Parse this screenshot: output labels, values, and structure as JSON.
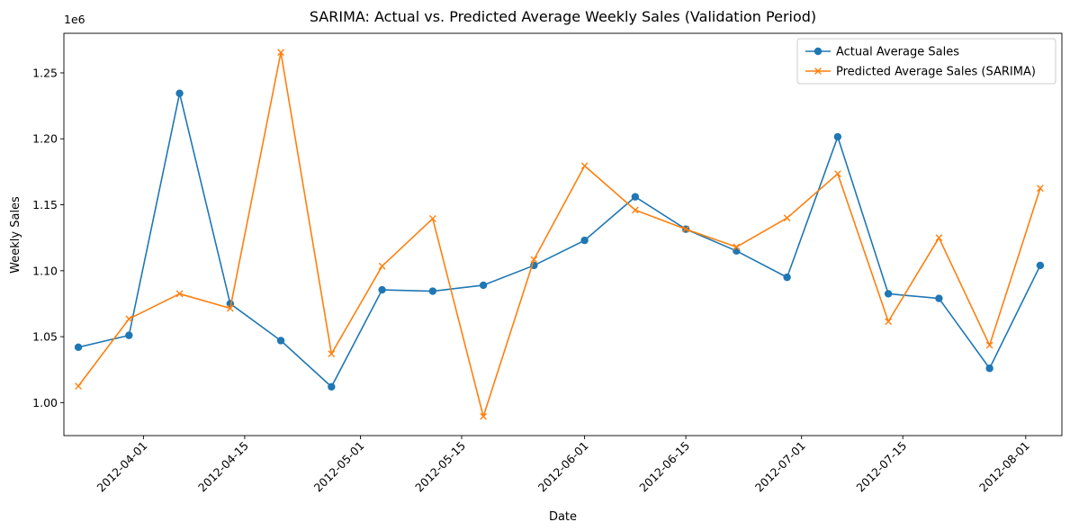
{
  "chart_data": {
    "type": "line",
    "title": "SARIMA: Actual vs. Predicted Average Weekly Sales (Validation Period)",
    "xlabel": "Date",
    "ylabel": "Weekly Sales",
    "y_offset_label": "1e6",
    "y_multiplier": 1000000,
    "ylim": [
      975000,
      1280000
    ],
    "xlim": [
      "2012-03-21",
      "2012-08-06"
    ],
    "x_tick_labels": [
      "2012-04-01",
      "2012-04-15",
      "2012-05-01",
      "2012-05-15",
      "2012-06-01",
      "2012-06-15",
      "2012-07-01",
      "2012-07-15",
      "2012-08-01"
    ],
    "y_tick_labels": [
      "1.00",
      "1.05",
      "1.10",
      "1.15",
      "1.20",
      "1.25"
    ],
    "y_tick_values": [
      1000000,
      1050000,
      1100000,
      1150000,
      1200000,
      1250000
    ],
    "grid": false,
    "legend_position": "top-right",
    "x": [
      "2012-03-23",
      "2012-03-30",
      "2012-04-06",
      "2012-04-13",
      "2012-04-20",
      "2012-04-27",
      "2012-05-04",
      "2012-05-11",
      "2012-05-18",
      "2012-05-25",
      "2012-06-01",
      "2012-06-08",
      "2012-06-15",
      "2012-06-22",
      "2012-06-29",
      "2012-07-06",
      "2012-07-13",
      "2012-07-20",
      "2012-07-27",
      "2012-08-03"
    ],
    "series": [
      {
        "name": "Actual Average Sales",
        "color": "#1f77b4",
        "marker": "circle",
        "values": [
          1042000,
          1051000,
          1234500,
          1075000,
          1047000,
          1012000,
          1085500,
          1084500,
          1089000,
          1104000,
          1123000,
          1156000,
          1131500,
          1115000,
          1095000,
          1201500,
          1082500,
          1079000,
          1026000,
          1104000
        ]
      },
      {
        "name": "Predicted Average Sales (SARIMA)",
        "color": "#ff7f0e",
        "marker": "x",
        "values": [
          1012500,
          1063500,
          1082500,
          1071500,
          1265500,
          1037000,
          1103500,
          1139500,
          989500,
          1108500,
          1179500,
          1146000,
          1131500,
          1118000,
          1140000,
          1173500,
          1061500,
          1125000,
          1043500,
          1162500
        ]
      }
    ]
  }
}
